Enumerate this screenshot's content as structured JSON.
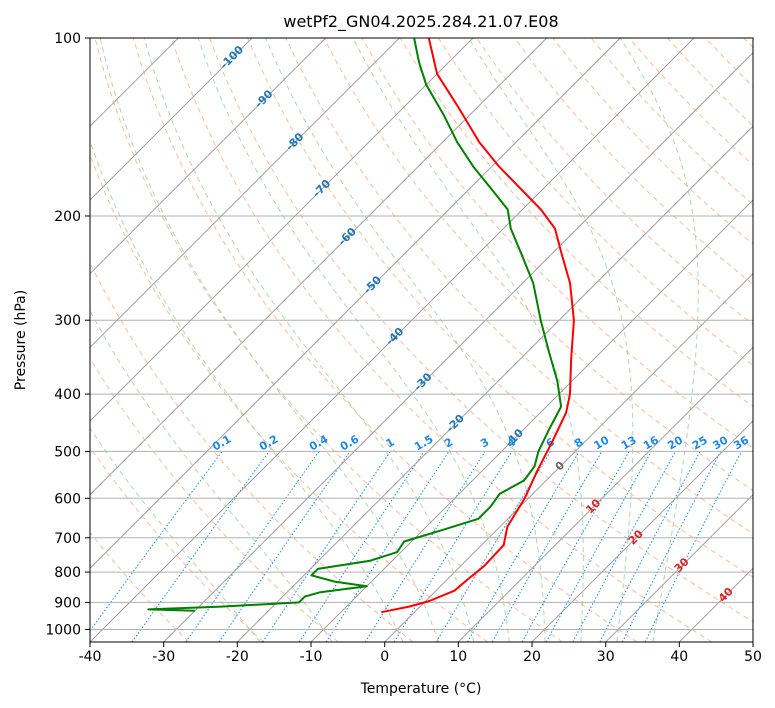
{
  "chart_data": {
    "type": "line",
    "title": "wetPf2_GN04.2025.284.21.07.E08",
    "xlabel": "Temperature (°C)",
    "ylabel": "Pressure (hPa)",
    "xlim": [
      -40,
      50
    ],
    "ylim": [
      1050,
      100
    ],
    "y_scale": "log",
    "skew_degrees": 45,
    "grid": true,
    "x_ticks": [
      "-40",
      "-30",
      "-20",
      "-10",
      "0",
      "10",
      "20",
      "30",
      "40",
      "50"
    ],
    "y_ticks": [
      "100",
      "200",
      "300",
      "400",
      "500",
      "600",
      "700",
      "800",
      "900",
      "1000"
    ],
    "series": [
      {
        "color": "#ff0000",
        "points": [
          {
            "p": 935,
            "t": -4.5
          },
          {
            "p": 915,
            "t": -1.5
          },
          {
            "p": 895,
            "t": 0.5
          },
          {
            "p": 860,
            "t": 2.5
          },
          {
            "p": 820,
            "t": 2.8
          },
          {
            "p": 780,
            "t": 3.2
          },
          {
            "p": 720,
            "t": 3.0
          },
          {
            "p": 670,
            "t": 1.0
          },
          {
            "p": 600,
            "t": -0.5
          },
          {
            "p": 540,
            "t": -2.5
          },
          {
            "p": 480,
            "t": -4.5
          },
          {
            "p": 430,
            "t": -6.5
          },
          {
            "p": 400,
            "t": -8.5
          },
          {
            "p": 350,
            "t": -13.0
          },
          {
            "p": 300,
            "t": -18.0
          },
          {
            "p": 260,
            "t": -23.5
          },
          {
            "p": 230,
            "t": -29.0
          },
          {
            "p": 210,
            "t": -33.0
          },
          {
            "p": 195,
            "t": -37.5
          },
          {
            "p": 180,
            "t": -43.0
          },
          {
            "p": 165,
            "t": -49.0
          },
          {
            "p": 150,
            "t": -55.0
          },
          {
            "p": 130,
            "t": -63.0
          },
          {
            "p": 115,
            "t": -70.0
          },
          {
            "p": 100,
            "t": -76.0
          }
        ]
      },
      {
        "color": "#008000",
        "points": [
          {
            "p": 930,
            "t": -30.0
          },
          {
            "p": 925,
            "t": -36.5
          },
          {
            "p": 915,
            "t": -27.0
          },
          {
            "p": 900,
            "t": -17.0
          },
          {
            "p": 880,
            "t": -17.0
          },
          {
            "p": 865,
            "t": -15.5
          },
          {
            "p": 845,
            "t": -10.0
          },
          {
            "p": 830,
            "t": -15.0
          },
          {
            "p": 810,
            "t": -19.0
          },
          {
            "p": 790,
            "t": -19.0
          },
          {
            "p": 765,
            "t": -13.0
          },
          {
            "p": 740,
            "t": -10.5
          },
          {
            "p": 710,
            "t": -11.0
          },
          {
            "p": 680,
            "t": -7.5
          },
          {
            "p": 650,
            "t": -4.0
          },
          {
            "p": 620,
            "t": -4.0
          },
          {
            "p": 590,
            "t": -4.5
          },
          {
            "p": 560,
            "t": -3.0
          },
          {
            "p": 530,
            "t": -3.5
          },
          {
            "p": 500,
            "t": -5.0
          },
          {
            "p": 460,
            "t": -6.5
          },
          {
            "p": 420,
            "t": -8.0
          },
          {
            "p": 380,
            "t": -12.0
          },
          {
            "p": 340,
            "t": -17.0
          },
          {
            "p": 300,
            "t": -22.5
          },
          {
            "p": 260,
            "t": -28.5
          },
          {
            "p": 230,
            "t": -34.5
          },
          {
            "p": 210,
            "t": -39.0
          },
          {
            "p": 195,
            "t": -42.0
          },
          {
            "p": 180,
            "t": -47.0
          },
          {
            "p": 165,
            "t": -52.5
          },
          {
            "p": 150,
            "t": -58.0
          },
          {
            "p": 135,
            "t": -63.5
          },
          {
            "p": 120,
            "t": -70.0
          },
          {
            "p": 110,
            "t": -74.0
          },
          {
            "p": 100,
            "t": -78.0
          }
        ]
      }
    ],
    "background_lines": {
      "isotherms": {
        "color": "#808080",
        "values": [
          -110,
          -100,
          -90,
          -80,
          -70,
          -60,
          -50,
          -40,
          -30,
          -20,
          -10,
          0,
          10,
          20,
          30,
          40,
          50
        ]
      },
      "dry_adiabats": {
        "color": "#f4a582",
        "values": [
          -30,
          -20,
          -10,
          0,
          10,
          20,
          30,
          40,
          50,
          60,
          70,
          80,
          90,
          100,
          110,
          120,
          130,
          140,
          150,
          160,
          170,
          180,
          190,
          200
        ]
      },
      "moist_adiabats": {
        "color": "#9ccc9c",
        "values": [
          -20,
          -10,
          0,
          5,
          10,
          15,
          20,
          25,
          30,
          35
        ]
      },
      "mixing_ratio": {
        "color": "#1e88e5",
        "values": [
          0.1,
          0.2,
          0.4,
          0.6,
          1,
          1.5,
          2,
          3,
          4,
          6,
          8,
          10,
          13,
          16,
          20,
          25,
          30,
          36
        ]
      }
    },
    "isotherm_labels": [
      "-100",
      "-90",
      "-80",
      "-70",
      "-60",
      "-50",
      "-40",
      "-30",
      "-20",
      "-10"
    ],
    "mixing_ratio_labels": [
      "0.1",
      "0.2",
      "0.4",
      "0.6",
      "1",
      "1.5",
      "2",
      "3",
      "4",
      "6",
      "8",
      "10",
      "13",
      "16",
      "20",
      "25",
      "30",
      "36"
    ],
    "warm_isotherm_labels": [
      "0",
      "10",
      "20",
      "30",
      "40"
    ]
  }
}
